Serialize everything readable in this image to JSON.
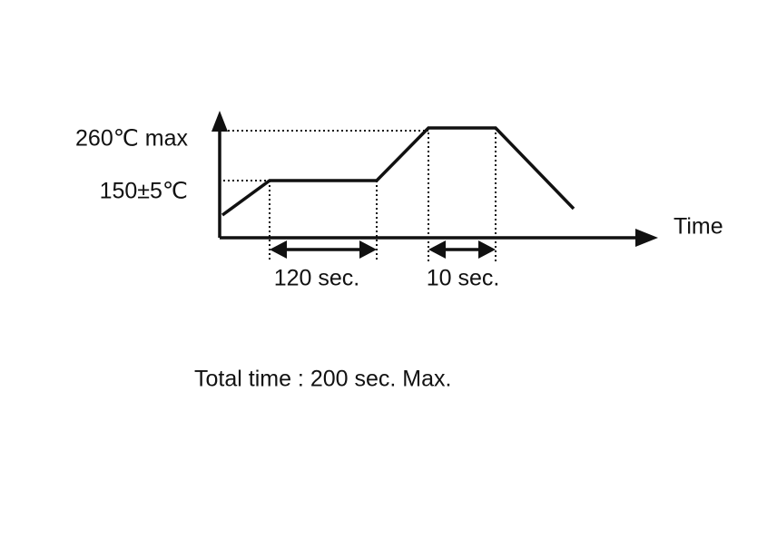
{
  "diagram": {
    "y_labels": {
      "peak": "260℃ max",
      "soak": "150±5℃"
    },
    "x_label": "Time",
    "intervals": [
      "120 sec.",
      "10 sec."
    ],
    "note": "Total time : 200 sec. Max."
  }
}
